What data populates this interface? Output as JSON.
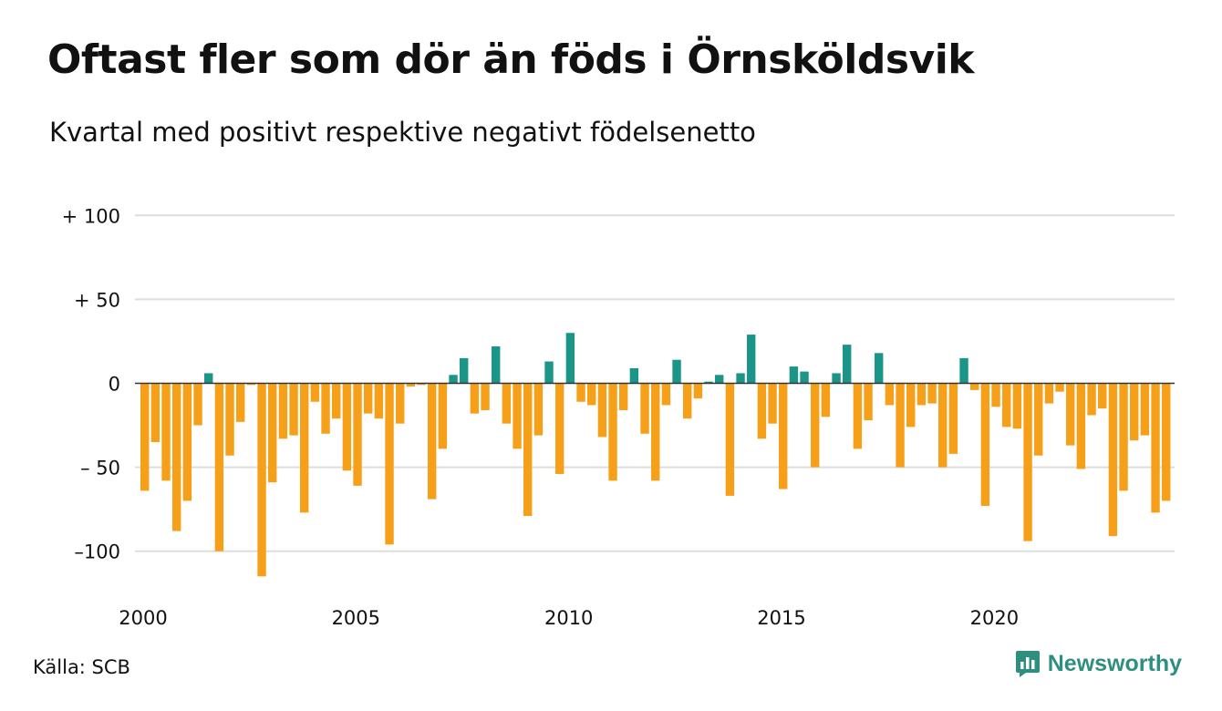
{
  "title": "Oftast fler som dör än föds i Örnsköldsvik",
  "subtitle": "Kvartal med positivt respektive negativt födelsenetto",
  "source": "Källa: SCB",
  "brand": {
    "name": "Newsworthy",
    "icon": "newsworthy-logo-icon"
  },
  "colors": {
    "positive": "#1a9587",
    "negative": "#f6a01a",
    "grid": "#dddddd",
    "zero_line": "#333333"
  },
  "chart_data": {
    "type": "bar",
    "title": "Oftast fler som dör än föds i Örnsköldsvik",
    "subtitle": "Kvartal med positivt respektive negativt födelsenetto",
    "xlabel": "",
    "ylabel": "",
    "x_start": 2000,
    "x_step_years": 0.25,
    "x_ticks": [
      2000,
      2005,
      2010,
      2015,
      2020
    ],
    "x_tick_labels": [
      "2000",
      "2005",
      "2010",
      "2015",
      "2020"
    ],
    "y_ticks": [
      100,
      50,
      0,
      -50,
      -100
    ],
    "y_tick_labels": [
      "+ 100",
      "+  50",
      "0",
      "– 50",
      "–100"
    ],
    "ylim": [
      -118,
      100
    ],
    "grid": true,
    "values": [
      -64,
      -35,
      -58,
      -88,
      -70,
      -25,
      6,
      -100,
      -43,
      -23,
      -1,
      -115,
      -59,
      -33,
      -31,
      -77,
      -11,
      -30,
      -21,
      -52,
      -61,
      -18,
      -21,
      -96,
      -24,
      -2,
      -1,
      -69,
      -39,
      5,
      15,
      -18,
      -16,
      22,
      -24,
      -39,
      -79,
      -31,
      13,
      -54,
      30,
      -11,
      -13,
      -32,
      -58,
      -16,
      9,
      -30,
      -58,
      -13,
      14,
      -21,
      -9,
      1,
      5,
      -67,
      6,
      29,
      -33,
      -24,
      -63,
      10,
      7,
      -50,
      -20,
      6,
      23,
      -39,
      -22,
      18,
      -13,
      -50,
      -26,
      -13,
      -12,
      -50,
      -42,
      15,
      -4,
      -73,
      -14,
      -26,
      -27,
      -94,
      -43,
      -12,
      -5,
      -37,
      -51,
      -19,
      -15,
      -91,
      -64,
      -34,
      -31,
      -77,
      -70
    ]
  }
}
